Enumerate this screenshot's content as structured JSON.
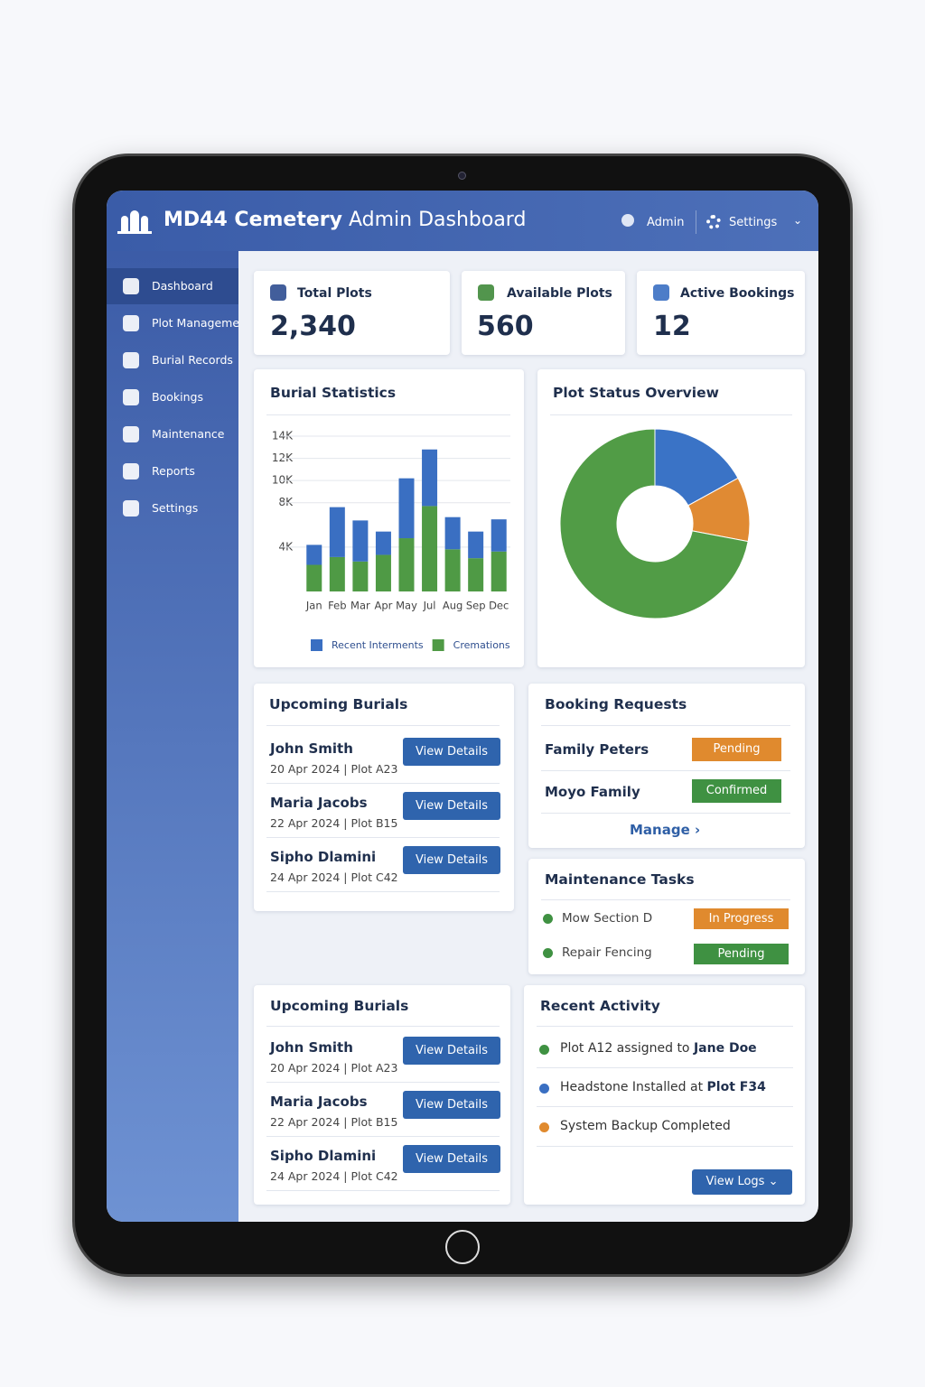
{
  "header": {
    "brand": "MD44 Cemetery",
    "title": "Admin Dashboard",
    "user": "Admin",
    "settings": "Settings"
  },
  "nav": [
    "Dashboard",
    "Plot Management",
    "Burial Records",
    "Bookings",
    "Maintenance",
    "Reports",
    "Settings"
  ],
  "stats": [
    {
      "label": "Total Plots",
      "value": "2,340"
    },
    {
      "label": "Available Plots",
      "value": "560"
    },
    {
      "label": "Active Bookings",
      "value": "12"
    }
  ],
  "chart_data": [
    {
      "type": "bar",
      "title": "Burial Statistics",
      "categories": [
        "Jan",
        "Feb",
        "Mar",
        "Apr",
        "May",
        "Jul",
        "Aug",
        "Sep",
        "Dec"
      ],
      "series": [
        {
          "name": "Cremations",
          "color": "#4f9a45",
          "values": [
            2400,
            3100,
            2700,
            3300,
            4800,
            7700,
            3800,
            3000,
            3600
          ]
        },
        {
          "name": "Recent Interments",
          "color": "#3a6fc2",
          "values": [
            1800,
            4500,
            3700,
            2100,
            5400,
            5100,
            2900,
            2400,
            2900
          ]
        }
      ],
      "stacked": true,
      "ylim": [
        0,
        14000
      ],
      "yticks": [
        {
          "value": 4000,
          "label": "4K"
        },
        {
          "value": 8000,
          "label": "8K"
        },
        {
          "value": 10000,
          "label": "10K"
        },
        {
          "value": 12000,
          "label": "12K"
        },
        {
          "value": 14000,
          "label": "14K"
        }
      ],
      "grid": true,
      "legend": "bottom"
    },
    {
      "type": "pie",
      "title": "Plot Status Overview",
      "values": [
        17,
        11,
        72
      ],
      "colors": [
        "#3a73c6",
        "#e08a33",
        "#519c46"
      ],
      "donut": true
    }
  ],
  "upcoming_burials": {
    "title": "Upcoming Burials",
    "button": "View Details",
    "items": [
      {
        "name": "John Smith",
        "detail": "20 Apr 2024 | Plot A23"
      },
      {
        "name": "Maria Jacobs",
        "detail": "22 Apr 2024 | Plot B15"
      },
      {
        "name": "Sipho Dlamini",
        "detail": "24 Apr 2024 | Plot C42"
      }
    ]
  },
  "booking_requests": {
    "title": "Booking Requests",
    "items": [
      {
        "name": "Family Peters",
        "status": "Pending"
      },
      {
        "name": "Moyo Family",
        "status": "Confirmed"
      }
    ],
    "link": "Manage"
  },
  "maintenance": {
    "title": "Maintenance Tasks",
    "items": [
      {
        "task": "Mow Section D",
        "status": "In Progress"
      },
      {
        "task": "Repair Fencing",
        "status": "Pending"
      }
    ]
  },
  "recent_activity": {
    "title": "Recent Activity",
    "items": [
      {
        "text": "Plot A12 assigned to",
        "highlight": "Jane Doe"
      },
      {
        "text": "Headstone Installed at",
        "highlight": "Plot F34"
      },
      {
        "text": "System Backup Completed"
      }
    ],
    "button": "View Logs"
  }
}
